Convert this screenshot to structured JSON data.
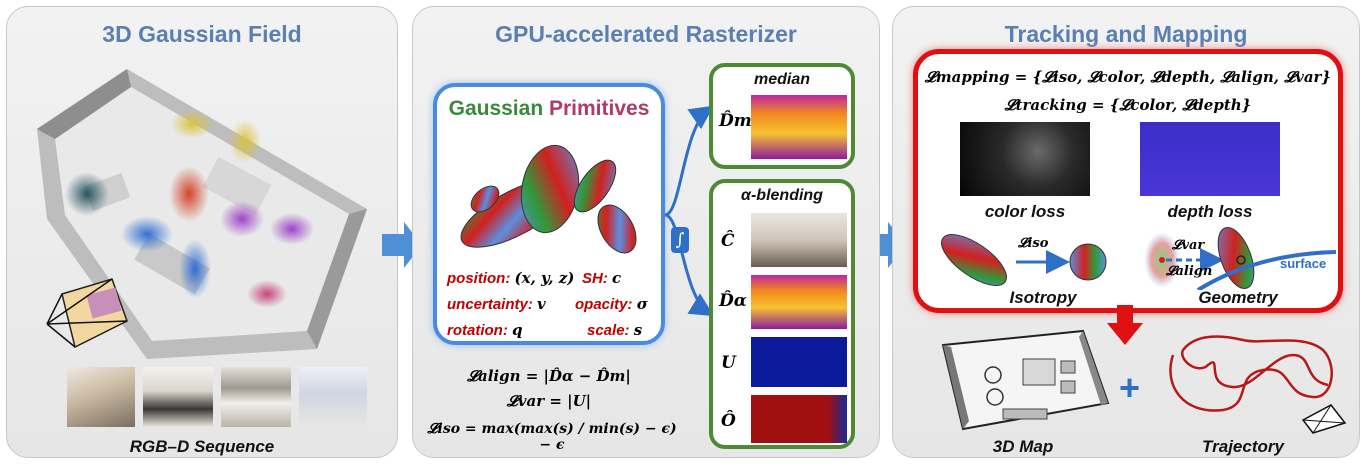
{
  "panels": [
    {
      "title": "3D Gaussian Field"
    },
    {
      "title": "GPU-accelerated Rasterizer"
    },
    {
      "title": "Tracking and Mapping"
    }
  ],
  "left": {
    "sequence_label": "RGB–D Sequence"
  },
  "primitives": {
    "title_word1": "Gaussian",
    "title_word2": "Primitives",
    "attributes": [
      {
        "name": "position:",
        "symbol": "(x, y, z)"
      },
      {
        "name": "SH:",
        "symbol": "c"
      },
      {
        "name": "uncertainty:",
        "symbol": "v"
      },
      {
        "name": "opacity:",
        "symbol": "σ"
      },
      {
        "name": "rotation:",
        "symbol": "q"
      },
      {
        "name": "scale:",
        "symbol": "s"
      }
    ]
  },
  "equations": {
    "align": "𝓛align = |D̂α − D̂m|",
    "var": "𝓛var = |U|",
    "iso": "𝓛iso = max(max(s) / min(s) − ϵ) − ϵ"
  },
  "render": {
    "integral": "∫",
    "median_title": "median",
    "median_symbol": "D̂m",
    "blend_title": "α-blending",
    "blend_symbols": [
      "Ĉ",
      "D̂α",
      "U",
      "Ô"
    ]
  },
  "tracking": {
    "mapping_eq": "𝓛mapping = {𝓛iso, 𝓛color, 𝓛depth, 𝓛align, 𝓛var}",
    "tracking_eq": "𝓛tracking = {𝓛color, 𝓛depth}",
    "color_loss": "color loss",
    "depth_loss": "depth loss",
    "iso_arrow_label": "𝓛iso",
    "var_label": "𝓛var",
    "align_label": "𝓛align",
    "surface_label": "surface",
    "isotropy_label": "Isotropy",
    "geometry_label": "Geometry",
    "map_label": "3D Map",
    "plus": "+",
    "trajectory_label": "Trajectory"
  },
  "colors": {
    "title_blue": "#5b7fb0",
    "flow_arrow": "#4f8fd6",
    "primitives_border": "#4a8be0",
    "render_border": "#4e8a35",
    "tracking_border": "#e01010",
    "attr_red": "#c00000"
  }
}
